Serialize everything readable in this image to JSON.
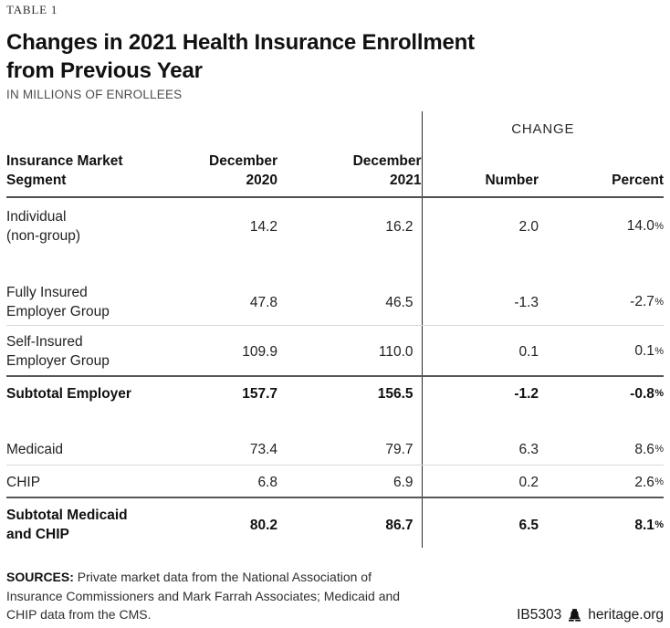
{
  "meta": {
    "table_label": "TABLE 1"
  },
  "title": {
    "text": "Changes in 2021 Health Insurance Enrollment\nfrom Previous Year",
    "subtitle": "IN MILLIONS OF ENROLLEES"
  },
  "chart_data": {
    "type": "table",
    "title": "Changes in 2021 Health Insurance Enrollment from Previous Year",
    "units": "millions of enrollees",
    "change_group_label": "CHANGE",
    "columns": {
      "segment": "Insurance Market\nSegment",
      "dec2020": "December\n2020",
      "dec2021": "December\n2021",
      "number": "Number",
      "percent": "Percent"
    },
    "rows": [
      {
        "segment": "Individual\n(non-group)",
        "dec2020": "14.2",
        "dec2021": "16.2",
        "number": "2.0",
        "percent": "14.0%",
        "bold": false
      },
      {
        "segment": "Fully Insured\nEmployer Group",
        "dec2020": "47.8",
        "dec2021": "46.5",
        "number": "-1.3",
        "percent": "-2.7%",
        "bold": false
      },
      {
        "segment": "Self-Insured\nEmployer Group",
        "dec2020": "109.9",
        "dec2021": "110.0",
        "number": "0.1",
        "percent": "0.1%",
        "bold": false
      },
      {
        "segment": "Subtotal Employer",
        "dec2020": "157.7",
        "dec2021": "156.5",
        "number": "-1.2",
        "percent": "-0.8%",
        "bold": true
      },
      {
        "segment": "Medicaid",
        "dec2020": "73.4",
        "dec2021": "79.7",
        "number": "6.3",
        "percent": "8.6%",
        "bold": false
      },
      {
        "segment": "CHIP",
        "dec2020": "6.8",
        "dec2021": "6.9",
        "number": "0.2",
        "percent": "2.6%",
        "bold": false
      },
      {
        "segment": "Subtotal Medicaid\nand CHIP",
        "dec2020": "80.2",
        "dec2021": "86.7",
        "number": "6.5",
        "percent": "8.1%",
        "bold": true
      }
    ]
  },
  "footer": {
    "sources_label": "SOURCES:",
    "sources_text": " Private market data from the National Association of Insurance Commissioners and Mark Farrah Associates; Medicaid and CHIP data from the CMS.",
    "report_id": "IB5303",
    "site": "heritage.org",
    "bell_icon": "heritage-liberty-bell"
  },
  "colors": {
    "text": "#1b1b1b",
    "muted_gray": "#4d4d4d",
    "rule_dark": "#575757",
    "rule_light": "#d8d8d8",
    "divider": "#2a2a2a",
    "background": "#ffffff"
  }
}
